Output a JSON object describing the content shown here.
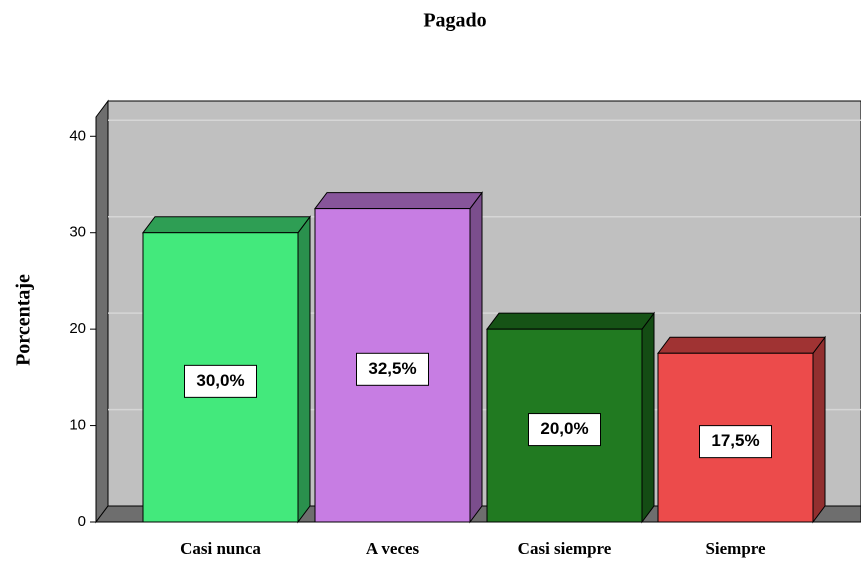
{
  "chart_data": {
    "type": "bar",
    "title": "Pagado",
    "y_label": "Porcentaje",
    "categories": [
      "Casi nunca",
      "A veces",
      "Casi siempre",
      "Siempre"
    ],
    "values": [
      30,
      32.5,
      20,
      17.5
    ],
    "value_labels": [
      "30,0%",
      "32,5%",
      "20,0%",
      "17,5%"
    ],
    "colors": [
      "#43e97c",
      "#c77de3",
      "#217a21",
      "#ec4b4b"
    ],
    "ylim": [
      0,
      42
    ],
    "yticks": [
      0,
      10,
      20,
      30,
      40
    ],
    "grid": true
  }
}
